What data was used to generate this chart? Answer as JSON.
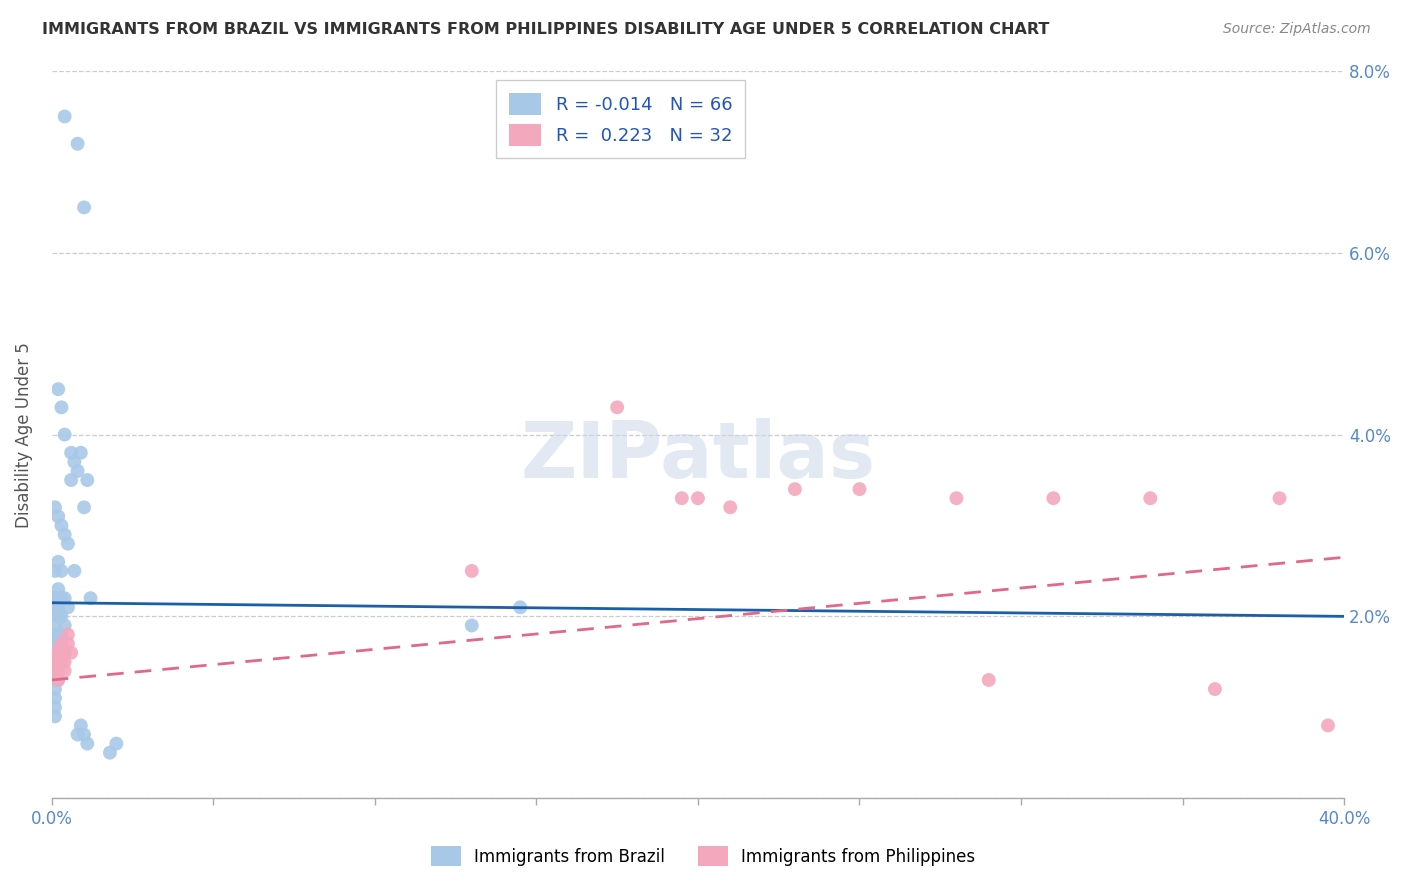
{
  "title": "IMMIGRANTS FROM BRAZIL VS IMMIGRANTS FROM PHILIPPINES DISABILITY AGE UNDER 5 CORRELATION CHART",
  "source": "Source: ZipAtlas.com",
  "ylabel": "Disability Age Under 5",
  "xlim": [
    0,
    0.4
  ],
  "ylim": [
    0,
    0.08
  ],
  "xticks": [
    0.0,
    0.05,
    0.1,
    0.15,
    0.2,
    0.25,
    0.3,
    0.35,
    0.4
  ],
  "yticks": [
    0.0,
    0.02,
    0.04,
    0.06,
    0.08
  ],
  "brazil_R": "-0.014",
  "brazil_N": "66",
  "phil_R": "0.223",
  "phil_N": "32",
  "brazil_color": "#a8c8e8",
  "phil_color": "#f4a8be",
  "brazil_line_color": "#1a5fa8",
  "phil_line_color": "#e06888",
  "brazil_x": [
    0.004,
    0.008,
    0.01,
    0.002,
    0.003,
    0.004,
    0.006,
    0.007,
    0.008,
    0.009,
    0.01,
    0.011,
    0.001,
    0.002,
    0.003,
    0.004,
    0.005,
    0.006,
    0.001,
    0.002,
    0.003,
    0.001,
    0.002,
    0.002,
    0.003,
    0.004,
    0.001,
    0.001,
    0.002,
    0.003,
    0.001,
    0.001,
    0.002,
    0.003,
    0.004,
    0.005,
    0.001,
    0.002,
    0.003,
    0.001,
    0.002,
    0.001,
    0.001,
    0.002,
    0.001,
    0.002,
    0.003,
    0.001,
    0.001,
    0.002,
    0.001,
    0.002,
    0.001,
    0.001,
    0.001,
    0.13,
    0.145,
    0.001,
    0.007,
    0.012,
    0.008,
    0.009,
    0.01,
    0.011,
    0.018,
    0.02
  ],
  "brazil_y": [
    0.075,
    0.072,
    0.065,
    0.045,
    0.043,
    0.04,
    0.038,
    0.037,
    0.036,
    0.038,
    0.032,
    0.035,
    0.032,
    0.031,
    0.03,
    0.029,
    0.028,
    0.035,
    0.025,
    0.026,
    0.025,
    0.022,
    0.021,
    0.023,
    0.022,
    0.022,
    0.021,
    0.022,
    0.021,
    0.022,
    0.021,
    0.02,
    0.02,
    0.02,
    0.019,
    0.021,
    0.019,
    0.018,
    0.018,
    0.018,
    0.017,
    0.017,
    0.016,
    0.016,
    0.015,
    0.015,
    0.015,
    0.015,
    0.014,
    0.014,
    0.013,
    0.013,
    0.012,
    0.011,
    0.01,
    0.019,
    0.021,
    0.009,
    0.025,
    0.022,
    0.007,
    0.008,
    0.007,
    0.006,
    0.005,
    0.006
  ],
  "phil_x": [
    0.001,
    0.002,
    0.003,
    0.003,
    0.004,
    0.004,
    0.005,
    0.005,
    0.006,
    0.001,
    0.002,
    0.003,
    0.002,
    0.003,
    0.004,
    0.002,
    0.003,
    0.001,
    0.13,
    0.175,
    0.195,
    0.2,
    0.21,
    0.23,
    0.25,
    0.28,
    0.29,
    0.31,
    0.34,
    0.36,
    0.38,
    0.395
  ],
  "phil_y": [
    0.016,
    0.015,
    0.016,
    0.017,
    0.015,
    0.016,
    0.017,
    0.018,
    0.016,
    0.015,
    0.014,
    0.015,
    0.016,
    0.015,
    0.014,
    0.013,
    0.016,
    0.014,
    0.025,
    0.043,
    0.033,
    0.033,
    0.032,
    0.034,
    0.034,
    0.033,
    0.013,
    0.033,
    0.033,
    0.012,
    0.033,
    0.008
  ],
  "brazil_line_y0": 0.0215,
  "brazil_line_y1": 0.02,
  "phil_line_y0": 0.013,
  "phil_line_y1": 0.0265
}
